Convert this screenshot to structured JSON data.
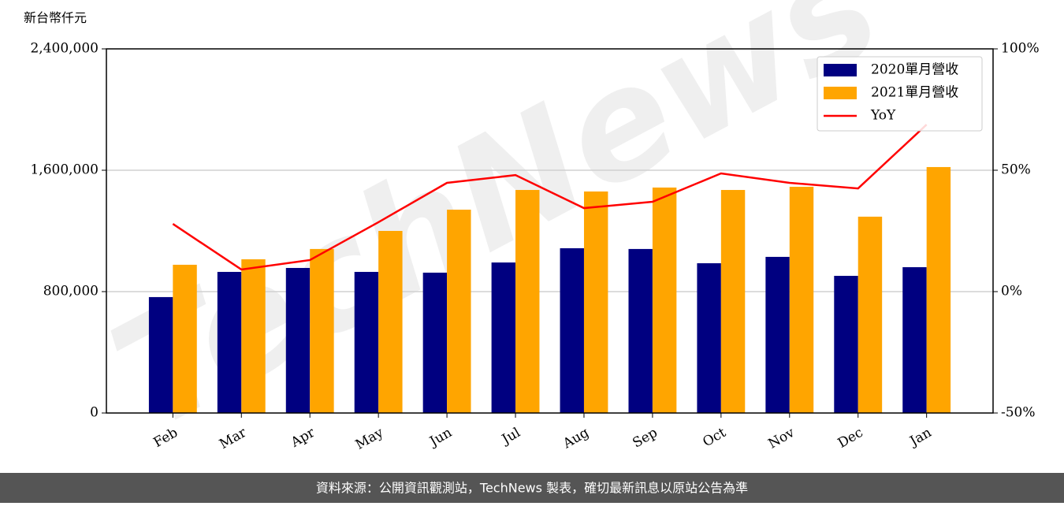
{
  "chart_data": {
    "type": "bar",
    "unit_label": "新台幣仟元",
    "watermark": "TechNews",
    "source": "資料來源：公開資訊觀測站，TechNews 製表，確切最新訊息以原站公告為準",
    "categories": [
      "Feb",
      "Mar",
      "Apr",
      "May",
      "Jun",
      "Jul",
      "Aug",
      "Sep",
      "Oct",
      "Nov",
      "Dec",
      "Jan"
    ],
    "series": [
      {
        "name": "2020單月營收",
        "color": "#000080",
        "values": [
          764000,
          930000,
          956000,
          930000,
          925000,
          992000,
          1086000,
          1081000,
          987000,
          1029000,
          904000,
          961000
        ]
      },
      {
        "name": "2021單月營收",
        "color": "#ffa500",
        "values": [
          977000,
          1013000,
          1081000,
          1200000,
          1340000,
          1470000,
          1460000,
          1486000,
          1470000,
          1491000,
          1294000,
          1621000
        ]
      },
      {
        "name": "YoY",
        "type": "line",
        "axis": "y2",
        "color": "#ff0000",
        "values": [
          27.9,
          9.1,
          13,
          28.6,
          44.8,
          48,
          34.4,
          37,
          48.7,
          44.8,
          42.5,
          68.8
        ]
      }
    ],
    "ylim": [
      0,
      2400000
    ],
    "yticks": [
      {
        "value": 0,
        "label": "0"
      },
      {
        "value": 800000,
        "label": "800,000"
      },
      {
        "value": 1600000,
        "label": "1,600,000"
      },
      {
        "value": 2400000,
        "label": "2,400,000"
      }
    ],
    "y2lim": [
      -50,
      100
    ],
    "y2ticks": [
      {
        "value": -50,
        "label": "-50%"
      },
      {
        "value": 0,
        "label": "0%"
      },
      {
        "value": 50,
        "label": "50%"
      },
      {
        "value": 100,
        "label": "100%"
      }
    ],
    "grid": true,
    "legend": "upper right"
  }
}
